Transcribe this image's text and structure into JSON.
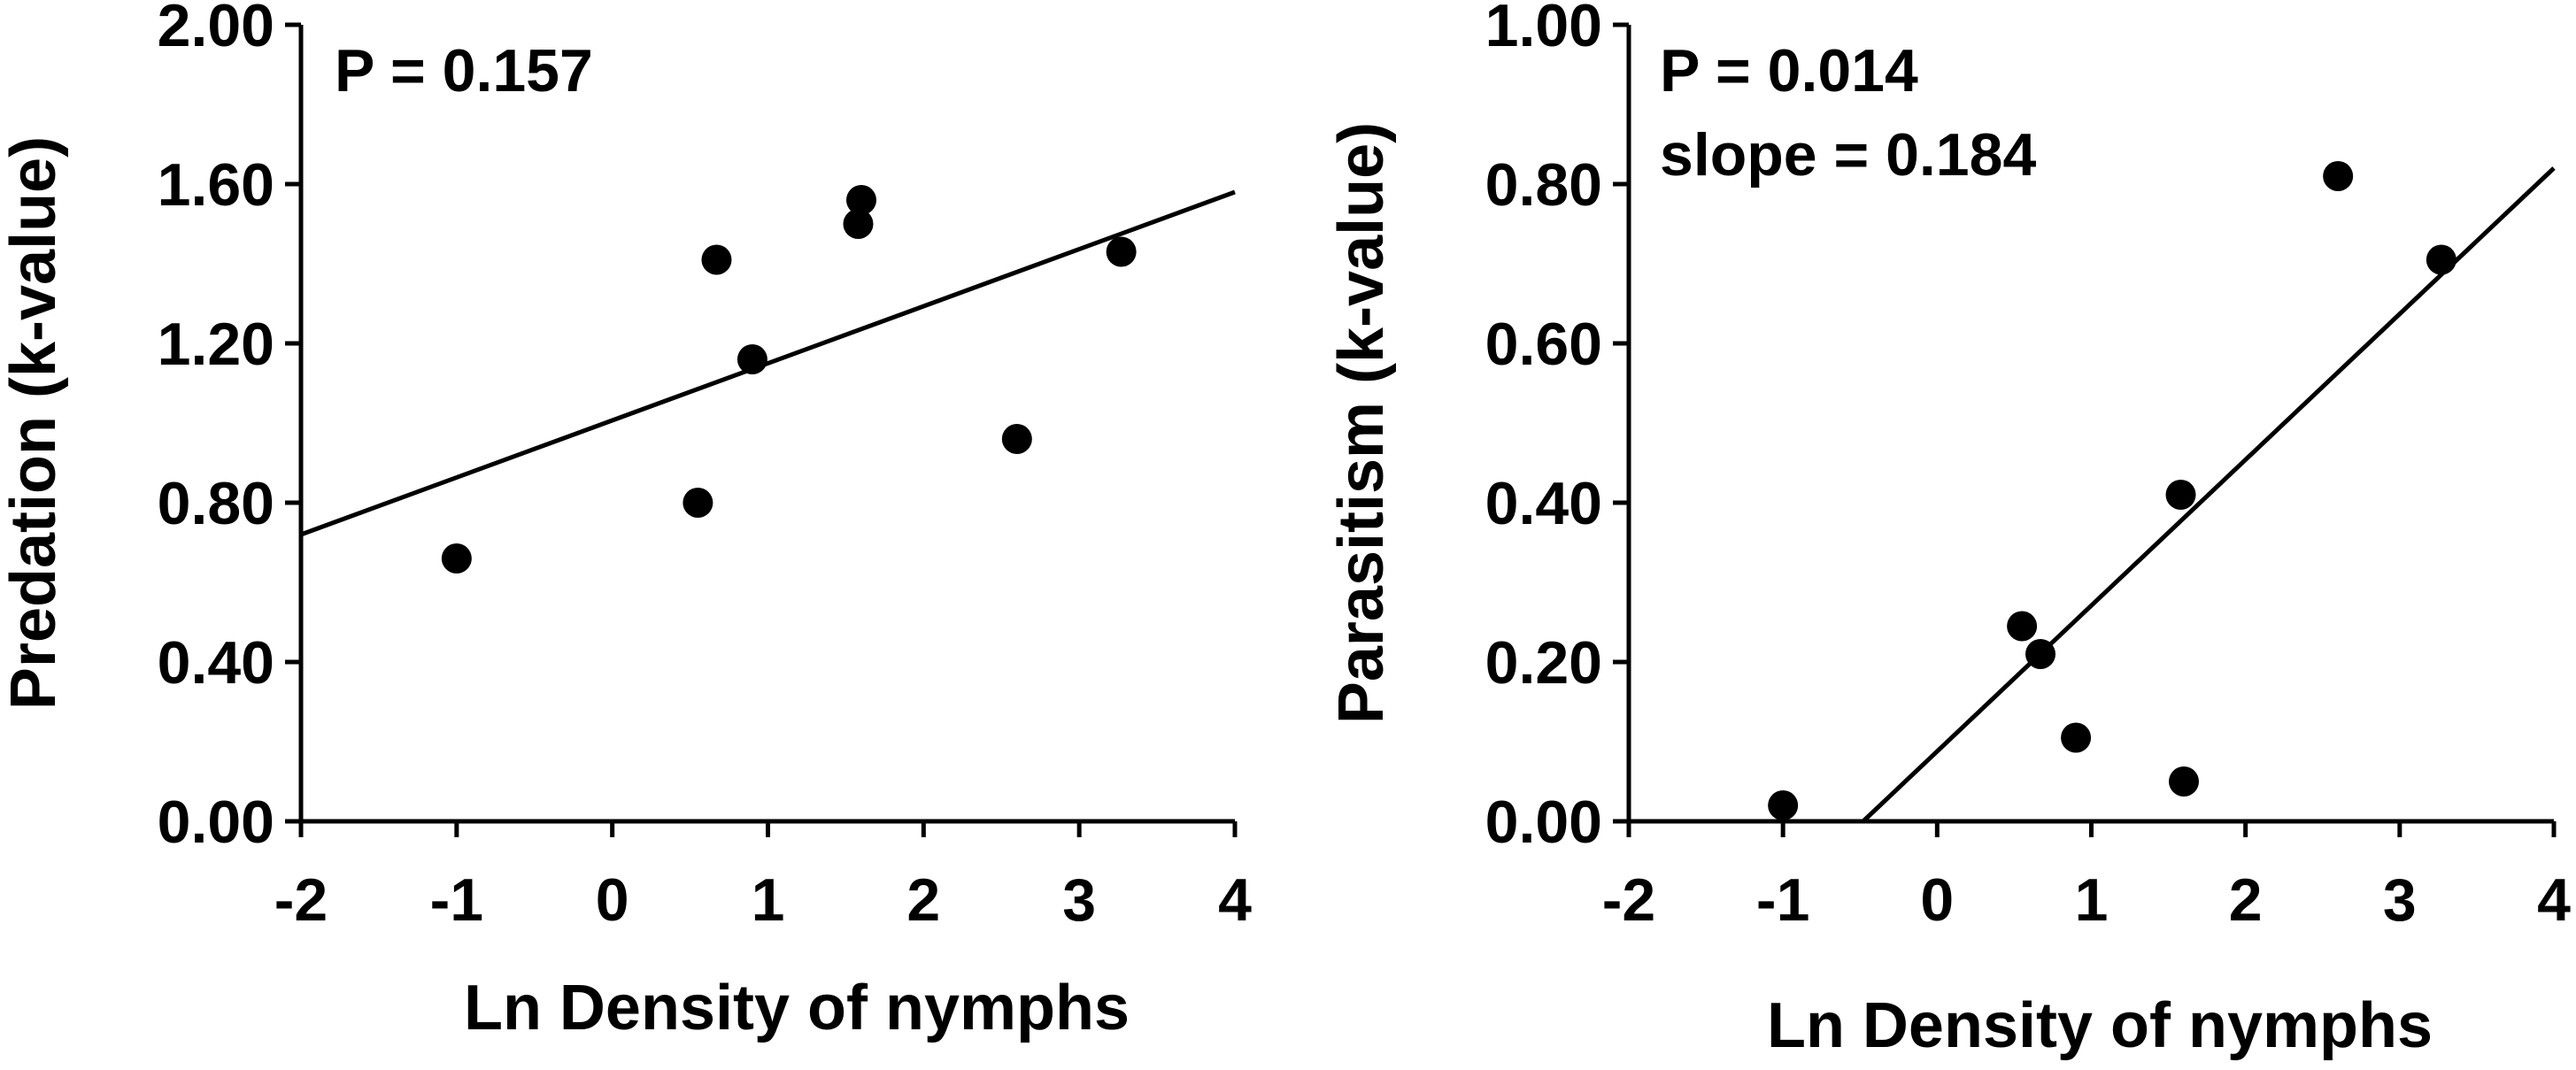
{
  "chart_data": [
    {
      "type": "scatter",
      "xlabel": "Ln Density of nymphs",
      "ylabel": "Predation (k-value)",
      "xlim": [
        -2,
        4
      ],
      "ylim": [
        0,
        2
      ],
      "xticks": [
        "-2",
        "-1",
        "0",
        "1",
        "2",
        "3",
        "4"
      ],
      "yticks": [
        "0.00",
        "0.40",
        "0.80",
        "1.20",
        "1.60",
        "2.00"
      ],
      "annotations": [
        "P = 0.157"
      ],
      "points": [
        {
          "x": -1.0,
          "y": 0.66
        },
        {
          "x": 0.55,
          "y": 0.8
        },
        {
          "x": 0.67,
          "y": 1.41
        },
        {
          "x": 0.9,
          "y": 1.16
        },
        {
          "x": 1.58,
          "y": 1.5
        },
        {
          "x": 1.6,
          "y": 1.56
        },
        {
          "x": 2.6,
          "y": 0.96
        },
        {
          "x": 3.27,
          "y": 1.43
        }
      ],
      "fit_line": {
        "x1": -2,
        "y1": 0.72,
        "x2": 4,
        "y2": 1.58
      }
    },
    {
      "type": "scatter",
      "xlabel": "Ln Density of nymphs",
      "ylabel": "Parasitism (k-value)",
      "xlim": [
        -2,
        4
      ],
      "ylim": [
        0,
        1
      ],
      "xticks": [
        "-2",
        "-1",
        "0",
        "1",
        "2",
        "3",
        "4"
      ],
      "yticks": [
        "0.00",
        "0.20",
        "0.40",
        "0.60",
        "0.80",
        "1.00"
      ],
      "annotations": [
        "P = 0.014",
        "slope = 0.184"
      ],
      "points": [
        {
          "x": -1.0,
          "y": 0.02
        },
        {
          "x": 0.55,
          "y": 0.245
        },
        {
          "x": 0.67,
          "y": 0.21
        },
        {
          "x": 0.9,
          "y": 0.105
        },
        {
          "x": 1.58,
          "y": 0.41
        },
        {
          "x": 1.6,
          "y": 0.05
        },
        {
          "x": 2.6,
          "y": 0.81
        },
        {
          "x": 3.27,
          "y": 0.705
        }
      ],
      "fit_line": {
        "x1": -0.48,
        "y1": 0.0,
        "x2": 4,
        "y2": 0.82
      }
    }
  ]
}
